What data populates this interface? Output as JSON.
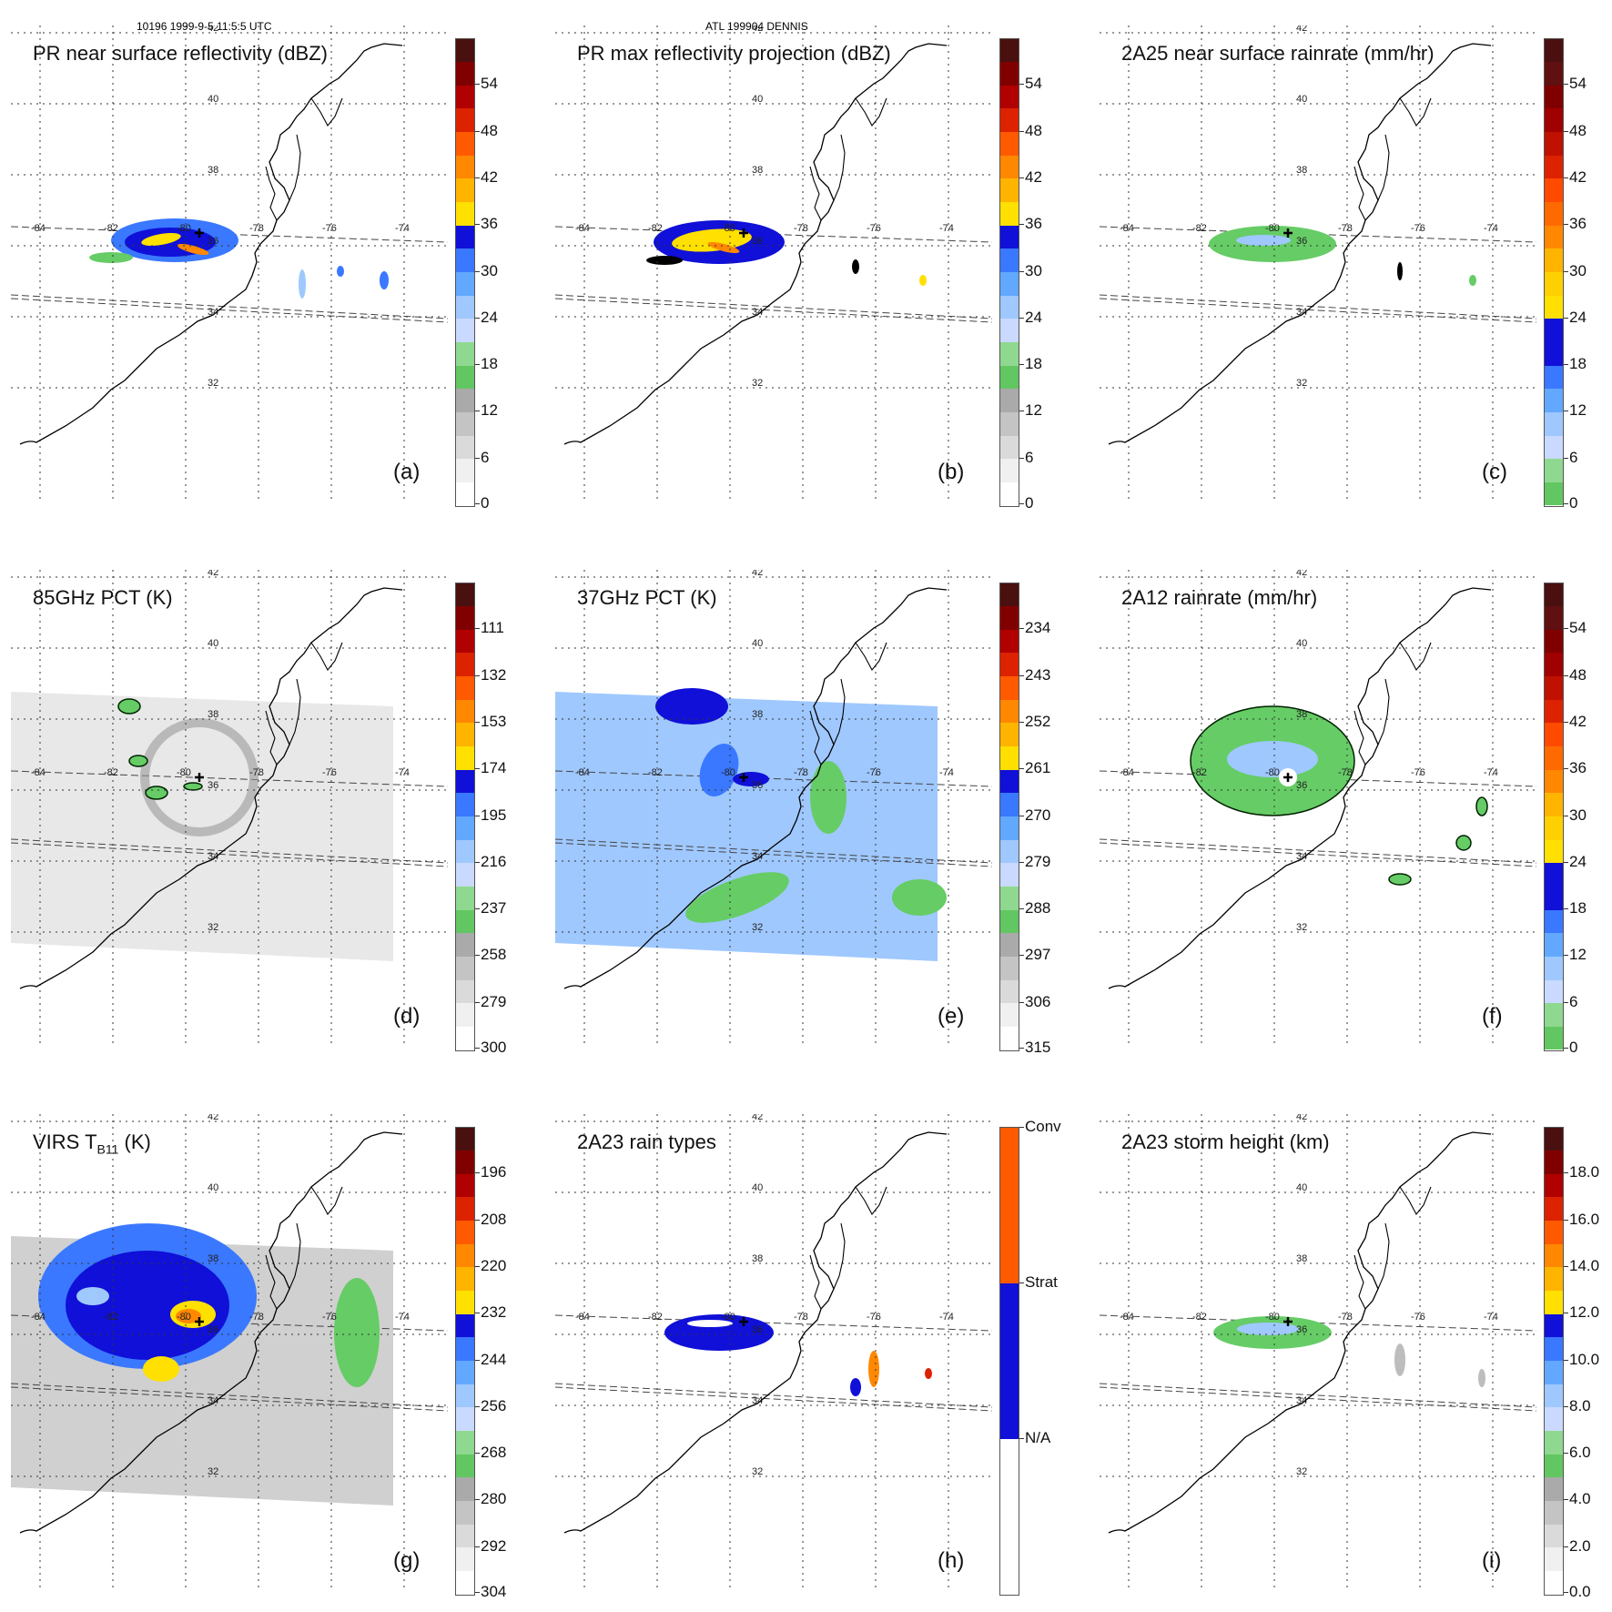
{
  "header": {
    "left": "10196 1999-9-5 11:5:5 UTC",
    "center": "ATL 199904 DENNIS"
  },
  "map": {
    "lon_labels": [
      "-84",
      "-82",
      "-80",
      "-78",
      "-76",
      "-74"
    ],
    "lat_labels": [
      "42",
      "40",
      "38",
      "36",
      "34",
      "32"
    ]
  },
  "colors": {
    "coast": "#000000",
    "grid": "#333333",
    "green": "#66cc66",
    "blue_dark": "#1010d8",
    "blue_mid": "#3a78ff",
    "blue_light": "#9fc8ff",
    "yellow": "#ffe000",
    "orange": "#ff8800",
    "red": "#dd2200",
    "gray": "#bdbdbd"
  },
  "chart_data": [
    {
      "panel": "a",
      "type": "heatmap",
      "title": "PR near surface reflectivity (dBZ)",
      "label": "(a)",
      "colorbar": {
        "ticks": [
          "54",
          "48",
          "42",
          "36",
          "30",
          "24",
          "18",
          "12",
          "6",
          "0"
        ],
        "stops": [
          "#ffffff",
          "#f0f0f0",
          "#dadada",
          "#c4c4c4",
          "#aaaaaa",
          "#62c762",
          "#8fd88f",
          "#c9d9ff",
          "#9fc8ff",
          "#62a8ff",
          "#3a78ff",
          "#1010d8",
          "#ffe000",
          "#ffb400",
          "#ff8800",
          "#ff5a00",
          "#dd2200",
          "#b00000",
          "#800000",
          "#4a1010"
        ]
      }
    },
    {
      "panel": "b",
      "type": "heatmap",
      "title": "PR max reflectivity projection (dBZ)",
      "label": "(b)",
      "colorbar": {
        "ticks": [
          "54",
          "48",
          "42",
          "36",
          "30",
          "24",
          "18",
          "12",
          "6",
          "0"
        ],
        "stops": [
          "#ffffff",
          "#f0f0f0",
          "#dadada",
          "#c4c4c4",
          "#aaaaaa",
          "#62c762",
          "#8fd88f",
          "#c9d9ff",
          "#9fc8ff",
          "#62a8ff",
          "#3a78ff",
          "#1010d8",
          "#ffe000",
          "#ffb400",
          "#ff8800",
          "#ff5a00",
          "#dd2200",
          "#b00000",
          "#800000",
          "#4a1010"
        ]
      }
    },
    {
      "panel": "c",
      "type": "heatmap",
      "title": "2A25 near surface rainrate (mm/hr)",
      "label": "(c)",
      "colorbar": {
        "ticks": [
          "54",
          "48",
          "42",
          "36",
          "30",
          "24",
          "18",
          "12",
          "6",
          "0"
        ],
        "stops": [
          "#62c762",
          "#8fd88f",
          "#c9d9ff",
          "#9fc8ff",
          "#62a8ff",
          "#3a78ff",
          "#1010d8",
          "#1010d8",
          "#ffe000",
          "#ffd000",
          "#ffb400",
          "#ff8800",
          "#ff6a00",
          "#ff4a00",
          "#dd2200",
          "#c01000",
          "#a00000",
          "#800000",
          "#601010",
          "#4a1010"
        ]
      }
    },
    {
      "panel": "d",
      "type": "heatmap",
      "title": "85GHz PCT (K)",
      "label": "(d)",
      "colorbar": {
        "ticks": [
          "111",
          "132",
          "153",
          "174",
          "195",
          "216",
          "237",
          "258",
          "279",
          "300"
        ],
        "stops": [
          "#ffffff",
          "#f0f0f0",
          "#dadada",
          "#c4c4c4",
          "#aaaaaa",
          "#62c762",
          "#8fd88f",
          "#c9d9ff",
          "#9fc8ff",
          "#62a8ff",
          "#3a78ff",
          "#1010d8",
          "#ffe000",
          "#ffb400",
          "#ff8800",
          "#ff5a00",
          "#dd2200",
          "#b00000",
          "#800000",
          "#4a1010"
        ]
      }
    },
    {
      "panel": "e",
      "type": "heatmap",
      "title": "37GHz PCT (K)",
      "label": "(e)",
      "colorbar": {
        "ticks": [
          "234",
          "243",
          "252",
          "261",
          "270",
          "279",
          "288",
          "297",
          "306",
          "315"
        ],
        "stops": [
          "#ffffff",
          "#f0f0f0",
          "#dadada",
          "#c4c4c4",
          "#aaaaaa",
          "#62c762",
          "#8fd88f",
          "#c9d9ff",
          "#9fc8ff",
          "#62a8ff",
          "#3a78ff",
          "#1010d8",
          "#ffe000",
          "#ffb400",
          "#ff8800",
          "#ff5a00",
          "#dd2200",
          "#b00000",
          "#800000",
          "#4a1010"
        ]
      }
    },
    {
      "panel": "f",
      "type": "heatmap",
      "title": "2A12 rainrate (mm/hr)",
      "label": "(f)",
      "colorbar": {
        "ticks": [
          "54",
          "48",
          "42",
          "36",
          "30",
          "24",
          "18",
          "12",
          "6",
          "0"
        ],
        "stops": [
          "#62c762",
          "#8fd88f",
          "#c9d9ff",
          "#9fc8ff",
          "#62a8ff",
          "#3a78ff",
          "#1010d8",
          "#1010d8",
          "#ffe000",
          "#ffd000",
          "#ffb400",
          "#ff8800",
          "#ff6a00",
          "#ff4a00",
          "#dd2200",
          "#c01000",
          "#a00000",
          "#800000",
          "#601010",
          "#4a1010"
        ]
      }
    },
    {
      "panel": "g",
      "type": "heatmap",
      "title": "VIRS T",
      "title_sub": "B11",
      "title_suffix": " (K)",
      "label": "(g)",
      "colorbar": {
        "ticks": [
          "196",
          "208",
          "220",
          "232",
          "244",
          "256",
          "268",
          "280",
          "292",
          "304"
        ],
        "stops": [
          "#ffffff",
          "#f0f0f0",
          "#dadada",
          "#c4c4c4",
          "#aaaaaa",
          "#62c762",
          "#8fd88f",
          "#c9d9ff",
          "#9fc8ff",
          "#62a8ff",
          "#3a78ff",
          "#1010d8",
          "#ffe000",
          "#ffb400",
          "#ff8800",
          "#ff5a00",
          "#dd2200",
          "#b00000",
          "#800000",
          "#4a1010"
        ]
      }
    },
    {
      "panel": "h",
      "type": "heatmap",
      "title": "2A23 rain types",
      "label": "(h)",
      "colorbar": {
        "categorical": true,
        "ticks": [
          "Conv",
          "Strat",
          "N/A"
        ],
        "stops": [
          "#ffffff",
          "#1010d8",
          "#ff5a00"
        ]
      }
    },
    {
      "panel": "i",
      "type": "heatmap",
      "title": "2A23 storm height (km)",
      "label": "(i)",
      "colorbar": {
        "ticks": [
          "18.0",
          "16.0",
          "14.0",
          "12.0",
          "10.0",
          "8.0",
          "6.0",
          "4.0",
          "2.0",
          "0.0"
        ],
        "stops": [
          "#ffffff",
          "#f0f0f0",
          "#dadada",
          "#c4c4c4",
          "#aaaaaa",
          "#62c762",
          "#8fd88f",
          "#c9d9ff",
          "#9fc8ff",
          "#62a8ff",
          "#3a78ff",
          "#1010d8",
          "#ffe000",
          "#ffb400",
          "#ff8800",
          "#ff5a00",
          "#dd2200",
          "#b00000",
          "#800000",
          "#4a1010"
        ]
      }
    }
  ]
}
